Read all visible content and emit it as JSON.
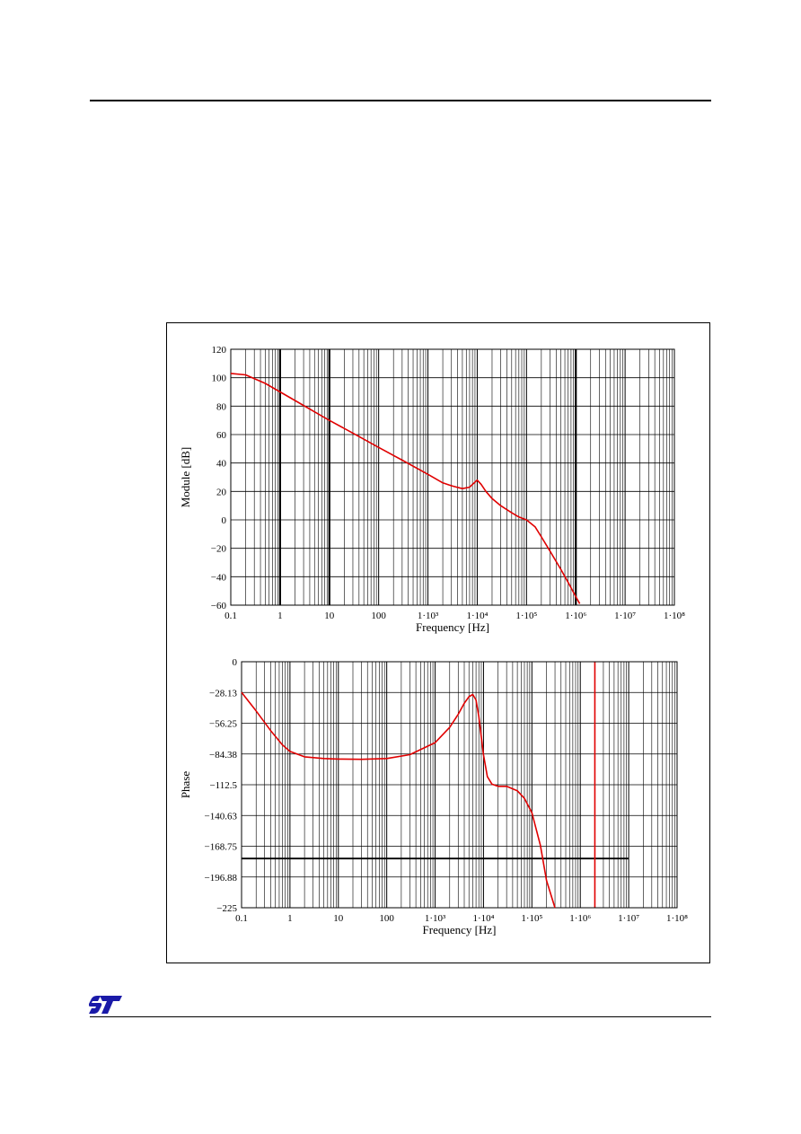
{
  "logo": {
    "brand": "ST",
    "icon": "st-logo"
  },
  "chart_data": [
    {
      "type": "line",
      "title": "",
      "xlabel": "Frequency [Hz]",
      "ylabel": "Module [dB]",
      "xscale": "log",
      "xlim": [
        0.1,
        100000000
      ],
      "ylim": [
        -60,
        120
      ],
      "xtick_labels": [
        "0.1",
        "1",
        "10",
        "100",
        "1·10³",
        "1·10⁴",
        "1·10⁵",
        "1·10⁶",
        "1·10⁷",
        "1·10⁸"
      ],
      "ytick_labels": [
        "120",
        "100",
        "80",
        "60",
        "40",
        "20",
        "0",
        "−20",
        "−40",
        "−60"
      ],
      "yticks": [
        120,
        100,
        80,
        60,
        40,
        20,
        0,
        -20,
        -40,
        -60
      ],
      "grid": true,
      "emphasized_vlines": [
        1,
        10,
        1000000
      ],
      "series": [
        {
          "color": "#e00000",
          "x": [
            0.1,
            0.2,
            0.5,
            1,
            2,
            5,
            10,
            30,
            100,
            300,
            1000,
            2000,
            3000,
            5000,
            7000,
            10000,
            12000,
            15000,
            20000,
            30000,
            50000,
            70000,
            100000,
            150000,
            200000,
            300000,
            500000,
            700000,
            1000000,
            1200000
          ],
          "y": [
            103,
            102,
            96,
            90,
            84,
            76,
            70,
            61,
            51,
            42,
            32,
            26,
            24,
            22,
            23,
            28,
            25,
            20,
            15,
            10,
            5,
            2,
            0,
            -5,
            -12,
            -22,
            -35,
            -44,
            -54,
            -59
          ]
        }
      ]
    },
    {
      "type": "line",
      "title": "",
      "xlabel": "Frequency [Hz]",
      "ylabel": "Phase",
      "xscale": "log",
      "xlim": [
        0.1,
        100000000
      ],
      "ylim": [
        -225,
        0
      ],
      "xtick_labels": [
        "0.1",
        "1",
        "10",
        "100",
        "1·10³",
        "1·10⁴",
        "1·10⁵",
        "1·10⁶",
        "1·10⁷",
        "1·10⁸"
      ],
      "ytick_labels": [
        "0",
        "−28.13",
        "−56.25",
        "−84.38",
        "−112.5",
        "−140.63",
        "−168.75",
        "−196.88",
        "−225"
      ],
      "yticks": [
        0,
        -28.13,
        -56.25,
        -84.38,
        -112.5,
        -140.63,
        -168.75,
        -196.88,
        -225
      ],
      "grid": true,
      "reference_hline": {
        "y": -180,
        "x_end": 10000000,
        "color": "#000000"
      },
      "reference_vline": {
        "x": 2000000,
        "color": "#e00000"
      },
      "series": [
        {
          "color": "#e00000",
          "x": [
            0.1,
            0.2,
            0.4,
            0.7,
            1,
            2,
            5,
            10,
            30,
            100,
            300,
            1000,
            2000,
            3000,
            4000,
            5000,
            6000,
            7000,
            8000,
            10000,
            12000,
            15000,
            20000,
            30000,
            50000,
            70000,
            100000,
            150000,
            200000,
            300000
          ],
          "y": [
            -28,
            -45,
            -63,
            -76,
            -82,
            -87,
            -88.5,
            -89,
            -89.3,
            -88.5,
            -85,
            -74,
            -60,
            -48,
            -38,
            -32,
            -30,
            -35,
            -50,
            -85,
            -105,
            -112,
            -114,
            -114,
            -118,
            -125,
            -138,
            -168,
            -200,
            -225
          ]
        }
      ]
    }
  ]
}
